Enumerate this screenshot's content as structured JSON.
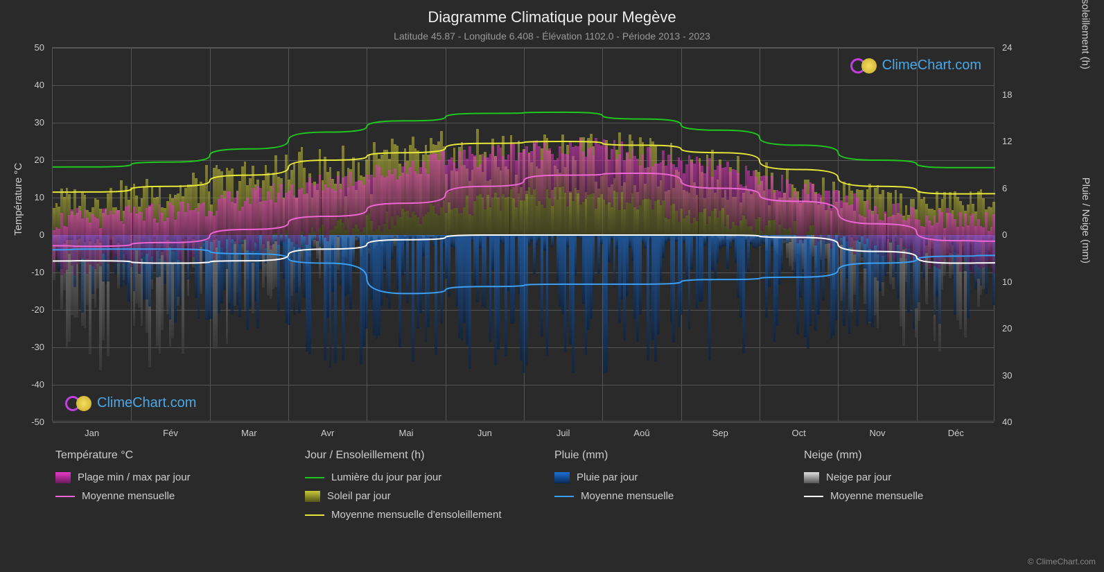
{
  "title": "Diagramme Climatique pour Megève",
  "subtitle": "Latitude 45.87 - Longitude 6.408 - Élévation 1102.0 - Période 2013 - 2023",
  "axis_left_title": "Température °C",
  "axis_right_top_title": "Jour / Ensoleillement (h)",
  "axis_right_bot_title": "Pluie / Neige (mm)",
  "copyright": "© ClimeChart.com",
  "logo_text": "ClimeChart.com",
  "colors": {
    "background": "#2a2a2a",
    "grid": "#555555",
    "text": "#cccccc",
    "temp_range": "#e838c8",
    "temp_avg": "#ed66d4",
    "daylight": "#1fc71f",
    "sun_bar": "#c9c83a",
    "sun_avg": "#e8e838",
    "rain_bar": "#1a6fd6",
    "rain_avg": "#3a9ff5",
    "snow_bar": "#bbbbbb",
    "snow_avg": "#ffffff",
    "logo_ring": "#c040e0",
    "logo_sun": "#e8d040",
    "logo_text": "#4aa8e8"
  },
  "y_left": {
    "min": -50,
    "max": 50,
    "step": 10
  },
  "y_right_top": {
    "min": 0,
    "max": 24,
    "step": 6,
    "zero_at_temp": 0,
    "scale_per_temp": 0.48
  },
  "y_right_bot": {
    "min": 0,
    "max": 40,
    "step": 10,
    "zero_at_temp": 0,
    "scale_per_temp": 0.8
  },
  "months": [
    "Jan",
    "Fév",
    "Mar",
    "Avr",
    "Mai",
    "Jun",
    "Juil",
    "Aoû",
    "Sep",
    "Oct",
    "Nov",
    "Déc"
  ],
  "monthly": {
    "daylight": [
      18.2,
      19.5,
      23.0,
      27.5,
      30.5,
      32.5,
      32.8,
      31.0,
      28.0,
      24.0,
      20.0,
      18.0
    ],
    "sun_avg": [
      11.5,
      13.0,
      16.0,
      20.0,
      22.0,
      24.5,
      25.0,
      24.0,
      22.0,
      17.5,
      13.0,
      11.0
    ],
    "temp_avg": [
      -3.0,
      -2.0,
      1.5,
      5.0,
      8.5,
      13.0,
      16.0,
      16.5,
      12.5,
      9.0,
      3.0,
      -1.5
    ],
    "rain_avg": [
      3.0,
      3.0,
      4.0,
      6.0,
      12.5,
      11.0,
      10.5,
      10.5,
      9.5,
      9.0,
      6.0,
      4.5
    ],
    "snow_avg": [
      5.5,
      6.0,
      5.5,
      3.0,
      1.0,
      0.0,
      0.0,
      0.0,
      0.0,
      0.5,
      3.5,
      6.0
    ]
  },
  "daily_sample": {
    "comment": "Per-day noisy bars approximated; 365 columns generated procedurally from monthly envelopes",
    "temp_min_base": [
      -8,
      -7,
      -4,
      -1,
      3,
      7,
      10,
      10,
      6,
      3,
      -2,
      -6
    ],
    "temp_max_base": [
      4,
      5,
      8,
      12,
      16,
      20,
      23,
      23,
      19,
      15,
      9,
      5
    ],
    "sun_max_base": [
      13,
      15,
      19,
      23,
      26,
      28,
      29,
      28,
      25,
      20,
      15,
      12
    ],
    "rain_max_base": [
      18,
      18,
      20,
      24,
      35,
      32,
      30,
      30,
      28,
      28,
      22,
      20
    ],
    "snow_max_base": [
      28,
      30,
      26,
      14,
      4,
      0,
      0,
      0,
      0,
      3,
      16,
      26
    ]
  },
  "legend": {
    "cols": [
      {
        "header": "Température °C",
        "items": [
          {
            "type": "swatch-grad-v",
            "color1": "#e838c8",
            "color2": "#6a1a5e",
            "label": "Plage min / max par jour"
          },
          {
            "type": "line",
            "color": "#ed66d4",
            "label": "Moyenne mensuelle"
          }
        ]
      },
      {
        "header": "Jour / Ensoleillement (h)",
        "items": [
          {
            "type": "line",
            "color": "#1fc71f",
            "label": "Lumière du jour par jour"
          },
          {
            "type": "swatch-grad-v",
            "color1": "#c9c83a",
            "color2": "#52521a",
            "label": "Soleil par jour"
          },
          {
            "type": "line",
            "color": "#e8e838",
            "label": "Moyenne mensuelle d'ensoleillement"
          }
        ]
      },
      {
        "header": "Pluie (mm)",
        "items": [
          {
            "type": "swatch-grad-v",
            "color1": "#1a6fd6",
            "color2": "#0a2a55",
            "label": "Pluie par jour"
          },
          {
            "type": "line",
            "color": "#3a9ff5",
            "label": "Moyenne mensuelle"
          }
        ]
      },
      {
        "header": "Neige (mm)",
        "items": [
          {
            "type": "swatch-grad-v",
            "color1": "#dddddd",
            "color2": "#555555",
            "label": "Neige par jour"
          },
          {
            "type": "line",
            "color": "#ffffff",
            "label": "Moyenne mensuelle"
          }
        ]
      }
    ]
  }
}
